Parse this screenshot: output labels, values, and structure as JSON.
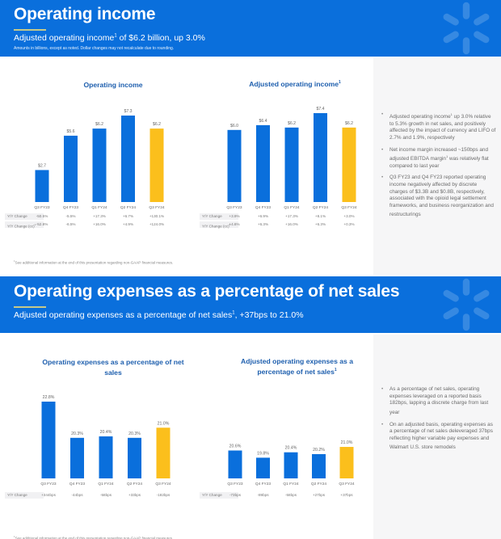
{
  "section1": {
    "title": "Operating income",
    "subtitle_pre": "Adjusted operating income",
    "subtitle_sup": "1",
    "subtitle_post": " of $6.2 billion, up 3.0%",
    "note": "Amounts in billions, except as noted. Dollar changes may not recalculate due to rounding.",
    "bullets": [
      {
        "pre": "Adjusted operating income",
        "sup": "1",
        "post": " up 3.0% relative to 5.3% growth in net sales, and positively affected by the impact of currency and LIFO of 2.7% and 1.9%, respectively"
      },
      {
        "pre": "Net income margin increased ~150bps and adjusted EBITDA margin",
        "sup": "1",
        "post": " was relatively flat compared to last year"
      },
      {
        "pre": "Q3 FY23 and Q4 FY23 reported operating income negatively affected by discrete charges of $3.3B and $0.8B, respectively, associated with the opioid legal settlement frameworks, and business reorganization and restructurings",
        "sup": "",
        "post": ""
      }
    ],
    "footnote_sup": "1",
    "footnote": "See additional information at the end of this presentation regarding non-GAAP financial measures."
  },
  "section2": {
    "title": "Operating expenses as a percentage of net sales",
    "subtitle_pre": "Adjusted operating expenses as a percentage of net sales",
    "subtitle_sup": "1",
    "subtitle_post": ", +37bps to 21.0%",
    "bullets": [
      {
        "pre": "As a percentage of net sales, operating expenses leveraged on a reported basis 182bps, lapping a discrete charge from last year",
        "sup": "",
        "post": ""
      },
      {
        "pre": "On an adjusted basis, operating expenses as a percentage of net sales deleveraged 37bps reflecting higher variable pay expenses and Walmart U.S. store remodels",
        "sup": "",
        "post": ""
      }
    ]
  },
  "colors": {
    "banner": "#0a6fdc",
    "bar_blue": "#0a6fdc",
    "bar_highlight": "#fbbf1c",
    "title_blue": "#1e5fae"
  },
  "chart_data": [
    {
      "id": "operating-income",
      "type": "bar",
      "title": "Operating income",
      "title_sup": "",
      "categories": [
        "Q3 FY23",
        "Q4 FY23",
        "Q1 FY24",
        "Q2 FY24",
        "Q3 FY24"
      ],
      "values": [
        2.7,
        5.6,
        6.2,
        7.3,
        6.2
      ],
      "labels": [
        "$2.7",
        "$5.6",
        "$6.2",
        "$7.3",
        "$6.2"
      ],
      "highlight_index": 4,
      "unit": "$B",
      "ylim": [
        0,
        7.3
      ],
      "grid": false,
      "table": [
        {
          "label": "Y/Y Change",
          "sup": "",
          "values": [
            "-50.5%",
            "-5.5%",
            "+17.3%",
            "+6.7%",
            "+130.1%"
          ]
        },
        {
          "label": "Y/Y Change (cc)",
          "sup": "1",
          "values": [
            "-52.8%",
            "-6.5%",
            "+16.0%",
            "+4.9%",
            "+124.0%"
          ]
        }
      ]
    },
    {
      "id": "adjusted-operating-income",
      "type": "bar",
      "title": "Adjusted operating income",
      "title_sup": "1",
      "categories": [
        "Q3 FY23",
        "Q4 FY23",
        "Q1 FY24",
        "Q2 FY24",
        "Q3 FY24"
      ],
      "values": [
        6.0,
        6.4,
        6.2,
        7.4,
        6.2
      ],
      "labels": [
        "$6.0",
        "$6.4",
        "$6.2",
        "$7.4",
        "$6.2"
      ],
      "highlight_index": 4,
      "unit": "$B",
      "ylim": [
        0,
        7.4
      ],
      "grid": false,
      "table": [
        {
          "label": "Y/Y Change",
          "sup": "",
          "values": [
            "+3.9%",
            "+6.9%",
            "+17.3%",
            "+8.1%",
            "+3.0%"
          ]
        },
        {
          "label": "Y/Y Change (cc)",
          "sup": "1",
          "values": [
            "+4.6%",
            "+6.3%",
            "+16.0%",
            "+6.3%",
            "+0.3%"
          ]
        }
      ]
    },
    {
      "id": "opex-pct-net-sales",
      "type": "bar",
      "title": "Operating expenses as a percentage of net sales",
      "title_sup": "",
      "categories": [
        "Q3 FY23",
        "Q4 FY23",
        "Q1 FY24",
        "Q2 FY24",
        "Q3 FY24"
      ],
      "values": [
        22.8,
        20.3,
        20.4,
        20.3,
        21.0
      ],
      "labels": [
        "22.8%",
        "20.3%",
        "20.4%",
        "20.3%",
        "21.0%"
      ],
      "highlight_index": 4,
      "unit": "%",
      "ylim": [
        17.5,
        22.8
      ],
      "grid": false,
      "table": [
        {
          "label": "Y/Y Change",
          "sup": "",
          "values": [
            "+344bps",
            "-44bps",
            "-58bps",
            "+33bps",
            "-182bps"
          ]
        }
      ]
    },
    {
      "id": "adjusted-opex-pct-net-sales",
      "type": "bar",
      "title": "Adjusted operating expenses as a percentage of net sales",
      "title_sup": "1",
      "categories": [
        "Q3 FY23",
        "Q4 FY23",
        "Q1 FY24",
        "Q2 FY24",
        "Q3 FY24"
      ],
      "values": [
        20.6,
        19.8,
        20.4,
        20.2,
        21.0
      ],
      "labels": [
        "20.6%",
        "19.8%",
        "20.4%",
        "20.2%",
        "21.0%"
      ],
      "highlight_index": 4,
      "unit": "%",
      "ylim": [
        17.5,
        22.8
      ],
      "grid": false,
      "table": [
        {
          "label": "Y/Y Change",
          "sup": "",
          "values": [
            "-73bps",
            "-89bps",
            "-58bps",
            "+27bps",
            "+37bps"
          ]
        }
      ]
    }
  ]
}
